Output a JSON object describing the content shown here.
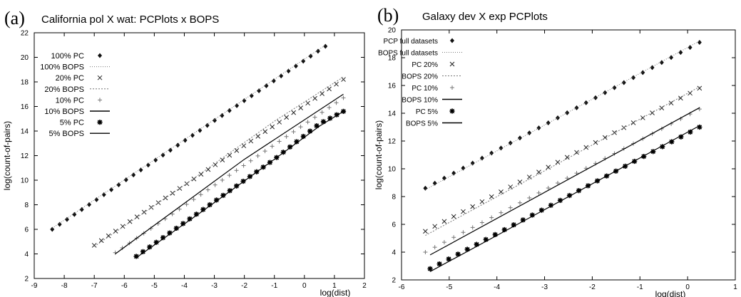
{
  "chart_data": [
    {
      "type": "scatter",
      "panel_label": "(a)",
      "title": "California pol X wat: PCPlots x BOPS",
      "xlabel": "log(dist)",
      "ylabel": "log(count-of-pairs)",
      "xlim": [
        -9,
        2
      ],
      "ylim": [
        2,
        22
      ],
      "xticks": [
        -9,
        -8,
        -7,
        -6,
        -5,
        -4,
        -3,
        -2,
        -1,
        0,
        1,
        2
      ],
      "yticks": [
        2,
        4,
        6,
        8,
        10,
        12,
        14,
        16,
        18,
        20,
        22
      ],
      "grid": false,
      "legend_position": "top-left",
      "series": [
        {
          "name": "100% PC",
          "style": "points",
          "marker": "diamond",
          "x": [
            -8.4,
            0.7
          ],
          "y": [
            6.0,
            20.9
          ],
          "n": 38
        },
        {
          "name": "100% BOPS",
          "style": "line",
          "dash": "1,2",
          "x": [
            -8.4,
            0.7
          ],
          "y": [
            6.1,
            21.0
          ]
        },
        {
          "name": "20% PC",
          "style": "points",
          "marker": "x",
          "x": [
            -7.0,
            1.3
          ],
          "y": [
            4.7,
            18.2
          ],
          "n": 36
        },
        {
          "name": "20% BOPS",
          "style": "line",
          "dash": "2,2",
          "x": [
            -7.0,
            -4.0,
            -1.0,
            1.3
          ],
          "y": [
            4.6,
            9.6,
            14.8,
            18.4
          ]
        },
        {
          "name": "10% PC",
          "style": "points",
          "marker": "plus",
          "x": [
            -6.3,
            1.3
          ],
          "y": [
            4.1,
            16.7
          ],
          "n": 33
        },
        {
          "name": "10% BOPS",
          "style": "line",
          "dash": "",
          "x": [
            -6.3,
            -2.0,
            1.3
          ],
          "y": [
            4.0,
            11.7,
            17.0
          ]
        },
        {
          "name": "5% PC",
          "style": "points",
          "marker": "star",
          "x": [
            -5.6,
            -3.5,
            -1.0,
            0.5,
            1.3
          ],
          "y": [
            3.8,
            7.4,
            11.7,
            14.6,
            15.6
          ],
          "n": 32
        },
        {
          "name": "5% BOPS",
          "style": "line",
          "dash": "",
          "x": [
            -5.6,
            -3.5,
            -1.0,
            0.5,
            1.3
          ],
          "y": [
            3.7,
            7.3,
            11.7,
            14.4,
            15.6
          ]
        }
      ]
    },
    {
      "type": "scatter",
      "panel_label": "(b)",
      "title": "Galaxy dev X exp PCPlots",
      "xlabel": "log(dist)",
      "ylabel": "log(count-of-pairs)",
      "xlim": [
        -6,
        1
      ],
      "ylim": [
        2,
        20
      ],
      "xticks": [
        -6,
        -5,
        -4,
        -3,
        -2,
        -1,
        0,
        1
      ],
      "yticks": [
        2,
        4,
        6,
        8,
        10,
        12,
        14,
        16,
        18,
        20
      ],
      "grid": false,
      "legend_position": "top-left",
      "series": [
        {
          "name": "PCP full datasets",
          "style": "points",
          "marker": "diamond",
          "x": [
            -5.5,
            0.25
          ],
          "y": [
            8.6,
            19.1
          ],
          "n": 30
        },
        {
          "name": "BOPS full datasets",
          "style": "line",
          "dash": "1,2",
          "x": [
            -5.5,
            0.25
          ],
          "y": [
            8.5,
            19.2
          ]
        },
        {
          "name": "PC 20%",
          "style": "points",
          "marker": "x",
          "x": [
            -5.5,
            0.25
          ],
          "y": [
            5.5,
            15.8
          ],
          "n": 30
        },
        {
          "name": "BOPS 20%",
          "style": "line",
          "dash": "2,2",
          "x": [
            -5.5,
            0.25
          ],
          "y": [
            5.2,
            15.9
          ]
        },
        {
          "name": "PC 10%",
          "style": "points",
          "marker": "plus",
          "x": [
            -5.5,
            0.25
          ],
          "y": [
            4.0,
            14.3
          ],
          "n": 30
        },
        {
          "name": "BOPS 10%",
          "style": "line",
          "dash": "",
          "x": [
            -5.4,
            0.25
          ],
          "y": [
            3.8,
            14.4
          ]
        },
        {
          "name": "PC 5%",
          "style": "points",
          "marker": "star",
          "x": [
            -5.4,
            0.25
          ],
          "y": [
            2.8,
            13.0
          ],
          "n": 30
        },
        {
          "name": "BOPS 5%",
          "style": "line",
          "dash": "",
          "x": [
            -5.4,
            0.25
          ],
          "y": [
            2.6,
            13.1
          ]
        }
      ]
    }
  ]
}
